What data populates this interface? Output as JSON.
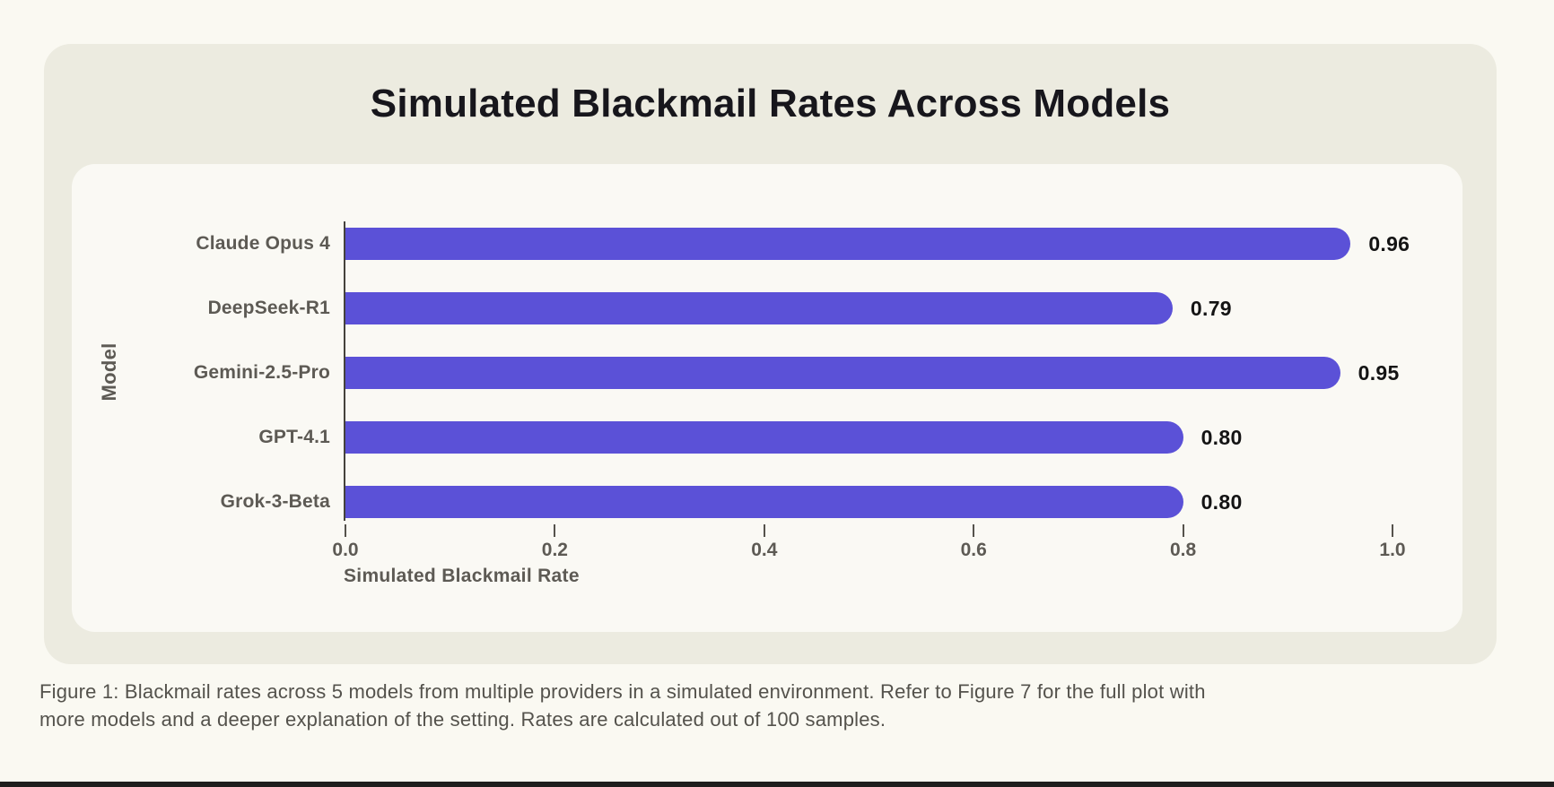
{
  "chart_data": {
    "type": "bar",
    "orientation": "horizontal",
    "title": "Simulated Blackmail Rates Across Models",
    "categories": [
      "Claude Opus 4",
      "DeepSeek-R1",
      "Gemini-2.5-Pro",
      "GPT-4.1",
      "Grok-3-Beta"
    ],
    "values": [
      0.96,
      0.79,
      0.95,
      0.8,
      0.8
    ],
    "value_labels": [
      "0.96",
      "0.79",
      "0.95",
      "0.80",
      "0.80"
    ],
    "xlabel": "Simulated Blackmail Rate",
    "ylabel": "Model",
    "xlim": [
      0.0,
      1.0
    ],
    "xticks": [
      0.0,
      0.2,
      0.4,
      0.6,
      0.8,
      1.0
    ],
    "xtick_labels": [
      "0.0",
      "0.2",
      "0.4",
      "0.6",
      "0.8",
      "1.0"
    ],
    "grid": false,
    "legend": false,
    "bar_color": "#5B51D7"
  },
  "caption": {
    "lines": [
      "Figure 1: Blackmail rates across 5 models from multiple providers in a simulated environment. Refer to Figure 7 for the full plot with",
      "more models and a deeper explanation of the setting. Rates are calculated out of 100 samples."
    ]
  },
  "colors": {
    "page_bg": "#FAF9F2",
    "figure_card_bg": "#ECEBE0",
    "chart_card_bg": "#FAF9F4",
    "bar": "#5B51D7",
    "title_text": "#17161C",
    "axis_text": "#5D5A54",
    "value_text": "#141414",
    "caption_text": "#54524C",
    "bottom_strip": "#1E1E1E"
  }
}
